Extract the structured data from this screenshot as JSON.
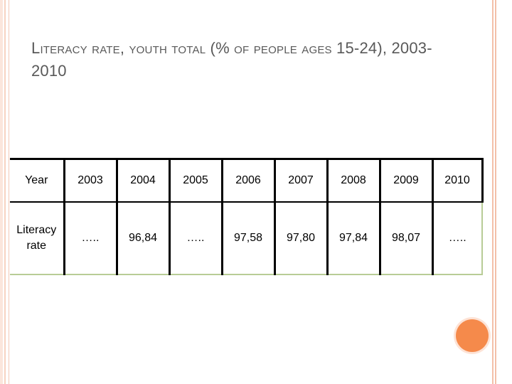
{
  "slide": {
    "title_initial": "L",
    "title_smallcaps_1": "iteracy rate, youth total",
    "title_mid": " (% ",
    "title_smallcaps_2": "of people ages",
    "title_end": " 15-24), 2003-2010"
  },
  "table": {
    "header": [
      "Year",
      "2003",
      "2004",
      "2005",
      "2006",
      "2007",
      "2008",
      "2009",
      "2010"
    ],
    "row": [
      "Literacy rate",
      "…..",
      "96,84",
      "…..",
      "97,58",
      "97,80",
      "97,84",
      "98,07",
      "….."
    ]
  }
}
